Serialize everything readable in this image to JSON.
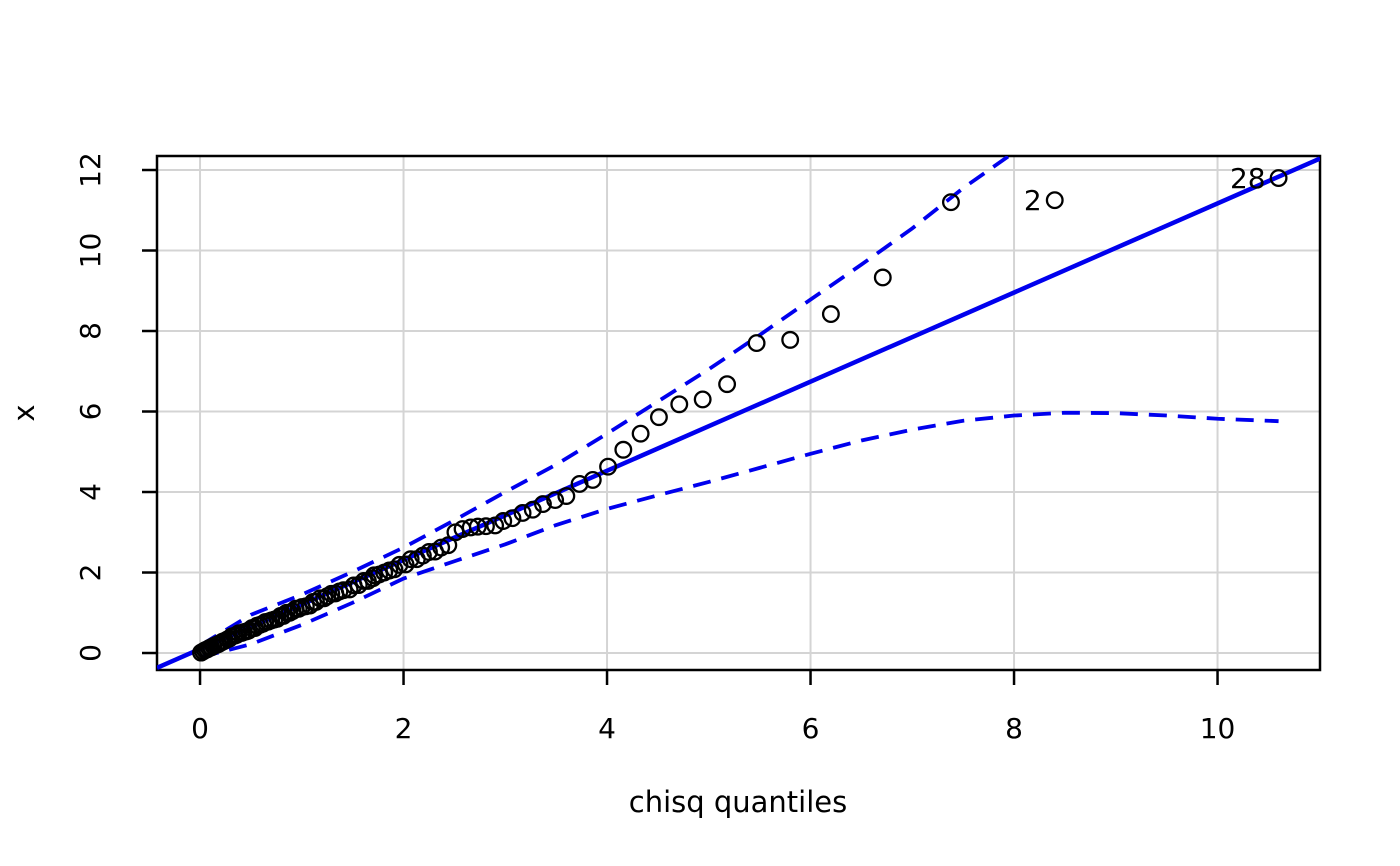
{
  "chart_data": {
    "type": "scatter",
    "title": "",
    "xlabel": "chisq quantiles",
    "ylabel": "x",
    "xlim": [
      -0.423,
      11.007
    ],
    "ylim": [
      -0.422,
      12.348
    ],
    "x_ticks": [
      0,
      2,
      4,
      6,
      8,
      10
    ],
    "y_ticks": [
      0,
      2,
      4,
      6,
      8,
      10,
      12
    ],
    "grid": true,
    "legend": "none",
    "distribution": "chisq",
    "points": [
      [
        0.01,
        0.01
      ],
      [
        0.03,
        0.04
      ],
      [
        0.05,
        0.07
      ],
      [
        0.07,
        0.09
      ],
      [
        0.09,
        0.12
      ],
      [
        0.11,
        0.14
      ],
      [
        0.13,
        0.17
      ],
      [
        0.16,
        0.2
      ],
      [
        0.18,
        0.22
      ],
      [
        0.2,
        0.25
      ],
      [
        0.22,
        0.28
      ],
      [
        0.24,
        0.3
      ],
      [
        0.27,
        0.34
      ],
      [
        0.29,
        0.36
      ],
      [
        0.31,
        0.41
      ],
      [
        0.34,
        0.43
      ],
      [
        0.36,
        0.45
      ],
      [
        0.38,
        0.49
      ],
      [
        0.41,
        0.5
      ],
      [
        0.43,
        0.52
      ],
      [
        0.46,
        0.54
      ],
      [
        0.48,
        0.56
      ],
      [
        0.51,
        0.62
      ],
      [
        0.54,
        0.62
      ],
      [
        0.56,
        0.68
      ],
      [
        0.59,
        0.7
      ],
      [
        0.62,
        0.73
      ],
      [
        0.64,
        0.77
      ],
      [
        0.67,
        0.78
      ],
      [
        0.7,
        0.81
      ],
      [
        0.73,
        0.83
      ],
      [
        0.76,
        0.85
      ],
      [
        0.79,
        0.92
      ],
      [
        0.82,
        0.92
      ],
      [
        0.85,
        1.0
      ],
      [
        0.88,
        1.0
      ],
      [
        0.91,
        1.04
      ],
      [
        0.94,
        1.1
      ],
      [
        0.97,
        1.1
      ],
      [
        1.0,
        1.14
      ],
      [
        1.04,
        1.16
      ],
      [
        1.08,
        1.18
      ],
      [
        1.11,
        1.27
      ],
      [
        1.14,
        1.27
      ],
      [
        1.18,
        1.36
      ],
      [
        1.22,
        1.36
      ],
      [
        1.25,
        1.41
      ],
      [
        1.29,
        1.47
      ],
      [
        1.33,
        1.48
      ],
      [
        1.37,
        1.53
      ],
      [
        1.41,
        1.56
      ],
      [
        1.47,
        1.58
      ],
      [
        1.51,
        1.68
      ],
      [
        1.56,
        1.69
      ],
      [
        1.61,
        1.79
      ],
      [
        1.65,
        1.79
      ],
      [
        1.7,
        1.86
      ],
      [
        1.71,
        1.93
      ],
      [
        1.76,
        1.95
      ],
      [
        1.81,
        2.0
      ],
      [
        1.86,
        2.05
      ],
      [
        1.91,
        2.08
      ],
      [
        1.96,
        2.19
      ],
      [
        2.02,
        2.2
      ],
      [
        2.07,
        2.33
      ],
      [
        2.13,
        2.33
      ],
      [
        2.19,
        2.42
      ],
      [
        2.25,
        2.51
      ],
      [
        2.31,
        2.52
      ],
      [
        2.37,
        2.62
      ],
      [
        2.44,
        2.68
      ],
      [
        2.51,
        3.0
      ],
      [
        2.58,
        3.08
      ],
      [
        2.66,
        3.12
      ],
      [
        2.73,
        3.14
      ],
      [
        2.81,
        3.15
      ],
      [
        2.9,
        3.17
      ],
      [
        2.98,
        3.28
      ],
      [
        3.07,
        3.35
      ],
      [
        3.17,
        3.48
      ],
      [
        3.27,
        3.56
      ],
      [
        3.37,
        3.7
      ],
      [
        3.49,
        3.8
      ],
      [
        3.6,
        3.9
      ],
      [
        3.73,
        4.2
      ],
      [
        3.86,
        4.3
      ],
      [
        4.01,
        4.63
      ],
      [
        4.16,
        5.05
      ],
      [
        4.33,
        5.45
      ],
      [
        4.51,
        5.86
      ],
      [
        4.71,
        6.18
      ],
      [
        4.94,
        6.3
      ],
      [
        5.18,
        6.68
      ],
      [
        5.47,
        7.7
      ],
      [
        5.8,
        7.78
      ],
      [
        6.2,
        8.42
      ],
      [
        6.71,
        9.33
      ],
      [
        7.38,
        11.2
      ],
      [
        8.4,
        11.25
      ],
      [
        10.6,
        11.8
      ]
    ],
    "reference_line": {
      "intercept": 0.1,
      "slope": 1.107,
      "style": "solid"
    },
    "envelope": {
      "style": "dashed",
      "upper": [
        [
          0.01,
          0.2
        ],
        [
          0.5,
          0.95
        ],
        [
          1.0,
          1.45
        ],
        [
          1.5,
          2.02
        ],
        [
          2.0,
          2.62
        ],
        [
          2.5,
          3.3
        ],
        [
          3.0,
          4.0
        ],
        [
          3.5,
          4.68
        ],
        [
          4.0,
          5.45
        ],
        [
          4.5,
          6.25
        ],
        [
          5.0,
          7.05
        ],
        [
          5.5,
          7.9
        ],
        [
          6.0,
          8.78
        ],
        [
          6.5,
          9.65
        ],
        [
          7.0,
          10.55
        ],
        [
          7.5,
          11.55
        ],
        [
          7.95,
          12.35
        ]
      ],
      "lower": [
        [
          0.01,
          -0.1
        ],
        [
          0.5,
          0.22
        ],
        [
          1.0,
          0.7
        ],
        [
          1.5,
          1.25
        ],
        [
          2.0,
          1.85
        ],
        [
          2.5,
          2.28
        ],
        [
          3.0,
          2.7
        ],
        [
          3.5,
          3.18
        ],
        [
          4.0,
          3.58
        ],
        [
          4.5,
          3.92
        ],
        [
          5.0,
          4.25
        ],
        [
          5.5,
          4.6
        ],
        [
          6.0,
          4.95
        ],
        [
          6.5,
          5.28
        ],
        [
          7.0,
          5.55
        ],
        [
          7.5,
          5.77
        ],
        [
          8.0,
          5.9
        ],
        [
          8.5,
          5.97
        ],
        [
          9.0,
          5.96
        ],
        [
          9.5,
          5.9
        ],
        [
          10.0,
          5.82
        ],
        [
          10.6,
          5.76
        ]
      ]
    },
    "labeled_points": [
      {
        "label": "2",
        "x": 8.4,
        "y": 11.25
      },
      {
        "label": "28",
        "x": 10.6,
        "y": 11.8
      }
    ],
    "colors": {
      "points": "#000000",
      "lines": "#0000ee",
      "grid": "#d4d4d4",
      "axis": "#000000",
      "background": "#ffffff"
    }
  }
}
